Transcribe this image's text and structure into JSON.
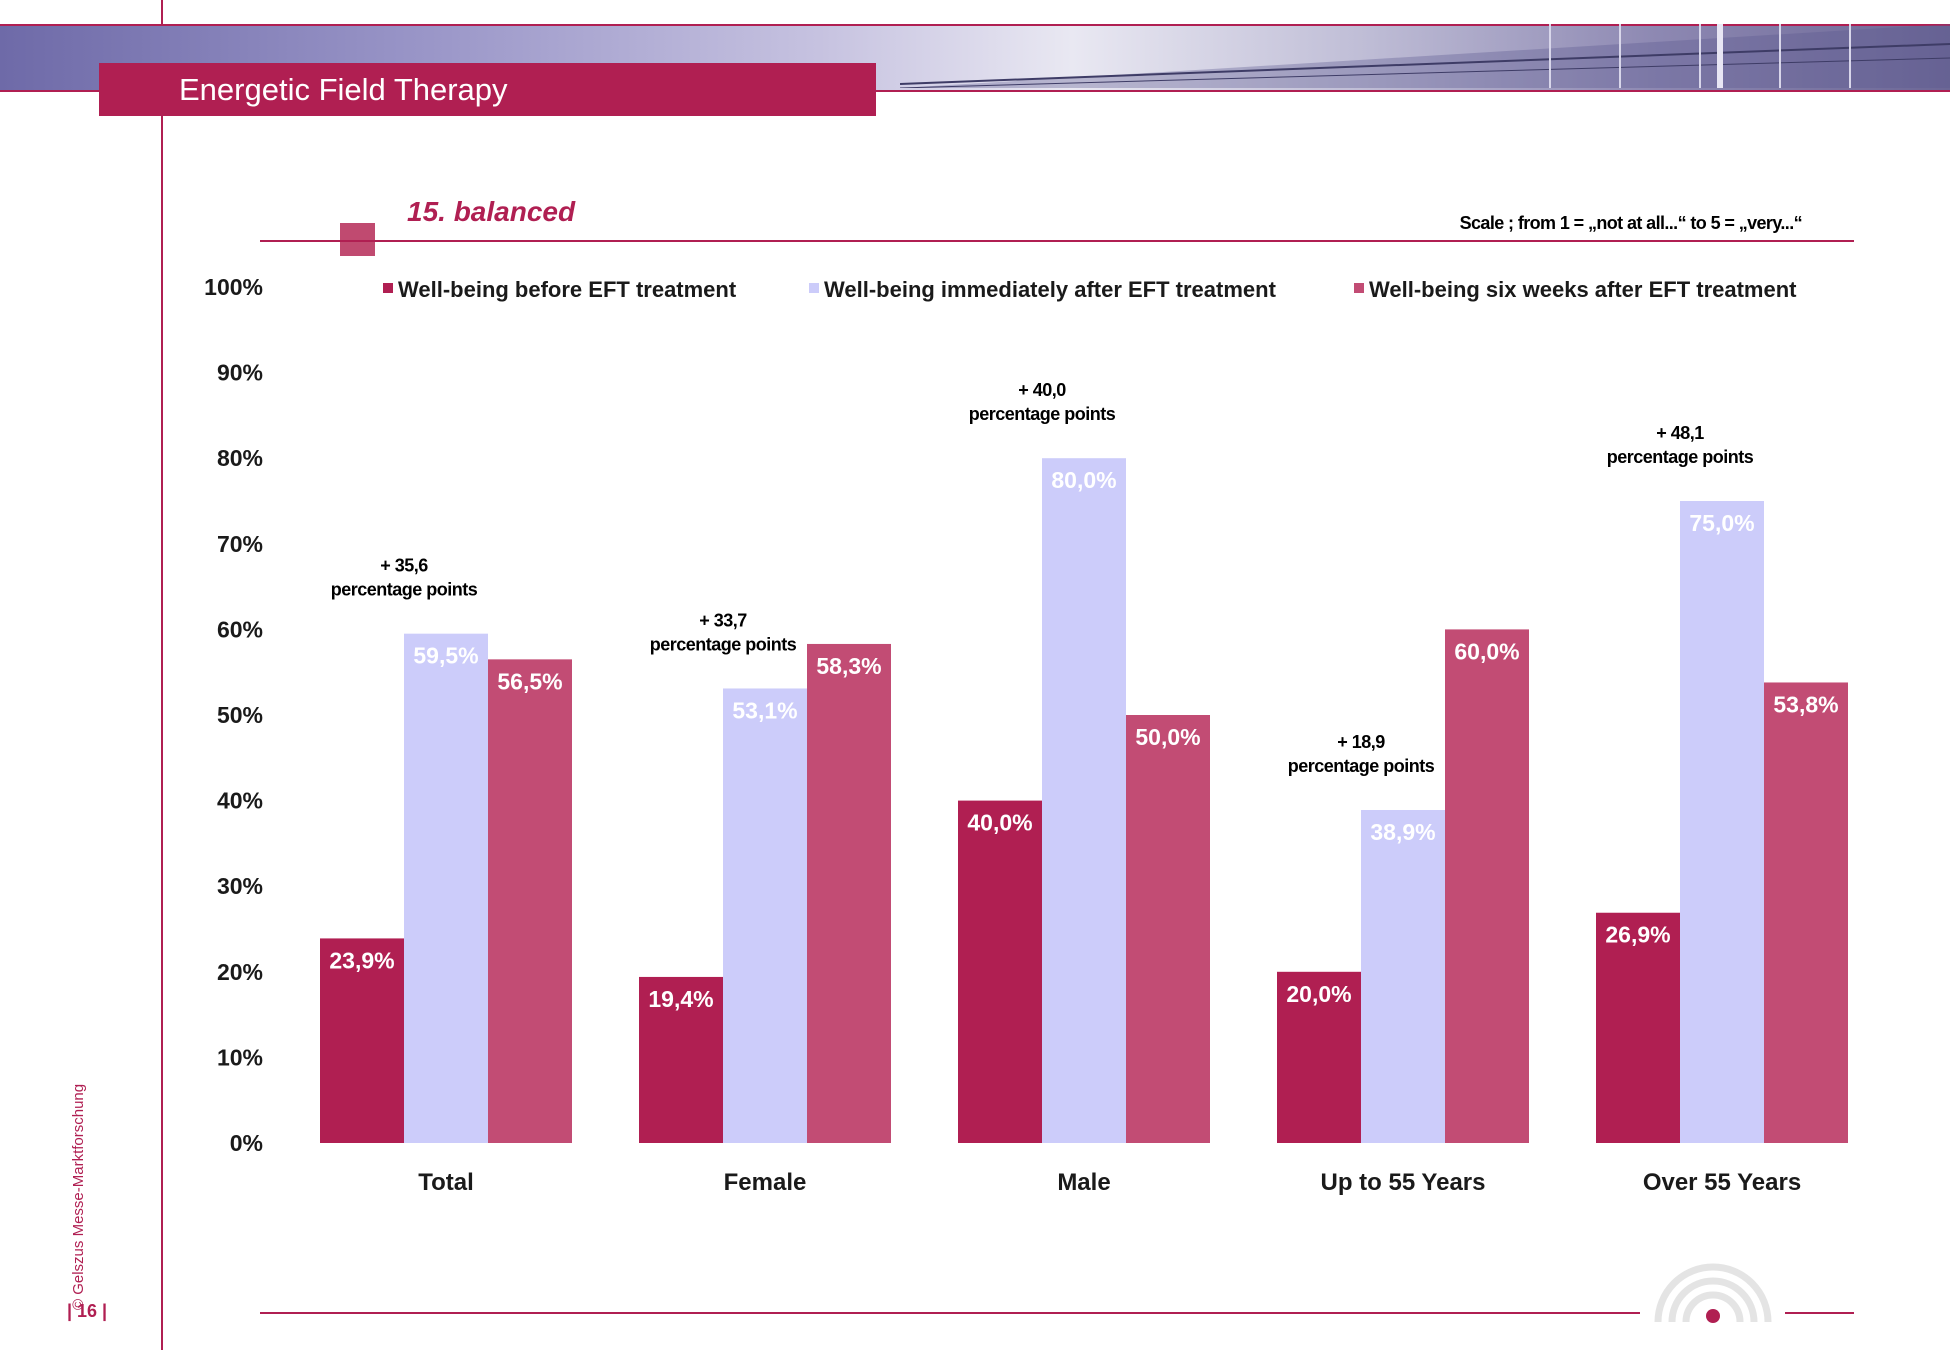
{
  "header": {
    "title": "Energetic Field Therapy",
    "subtitle": "15. balanced",
    "scale_note": "Scale ; from 1 = „not at all...“  to 5 = „very...“"
  },
  "footer": {
    "copyright": "© Gelszus Messe-Marktforschung",
    "page_number": "| 16 |"
  },
  "colors": {
    "brand": "#b01f52",
    "before": "#b01f52",
    "immediately": "#ccccfa",
    "six_weeks": "#c24c74"
  },
  "chart_data": {
    "type": "bar",
    "categories": [
      "Total",
      "Female",
      "Male",
      "Up to 55 Years",
      "Over 55 Years"
    ],
    "series": [
      {
        "name": "Well-being before EFT treatment",
        "values": [
          23.9,
          19.4,
          40.0,
          20.0,
          26.9
        ],
        "labels": [
          "23,9%",
          "19,4%",
          "40,0%",
          "20,0%",
          "26,9%"
        ]
      },
      {
        "name": "Well-being immediately after EFT treatment",
        "values": [
          59.5,
          53.1,
          80.0,
          38.9,
          75.0
        ],
        "labels": [
          "59,5%",
          "53,1%",
          "80,0%",
          "38,9%",
          "75,0%"
        ]
      },
      {
        "name": "Well-being six weeks after EFT treatment",
        "values": [
          56.5,
          58.3,
          50.0,
          60.0,
          53.8
        ],
        "labels": [
          "56,5%",
          "58,3%",
          "50,0%",
          "60,0%",
          "53,8%"
        ]
      }
    ],
    "ylim": [
      0,
      100
    ],
    "yticks": [
      "0%",
      "10%",
      "20%",
      "30%",
      "40%",
      "50%",
      "60%",
      "70%",
      "80%",
      "90%",
      "100%"
    ],
    "annotations": [
      {
        "category": "Total",
        "line1": "+ 35,6",
        "line2": "percentage points"
      },
      {
        "category": "Female",
        "line1": "+ 33,7",
        "line2": "percentage points"
      },
      {
        "category": "Male",
        "line1": "+ 40,0",
        "line2": "percentage points"
      },
      {
        "category": "Up to 55 Years",
        "line1": "+ 18,9",
        "line2": "percentage points"
      },
      {
        "category": "Over 55 Years",
        "line1": "+ 48,1",
        "line2": "percentage points"
      }
    ],
    "legend_position": "top",
    "grid": false
  }
}
